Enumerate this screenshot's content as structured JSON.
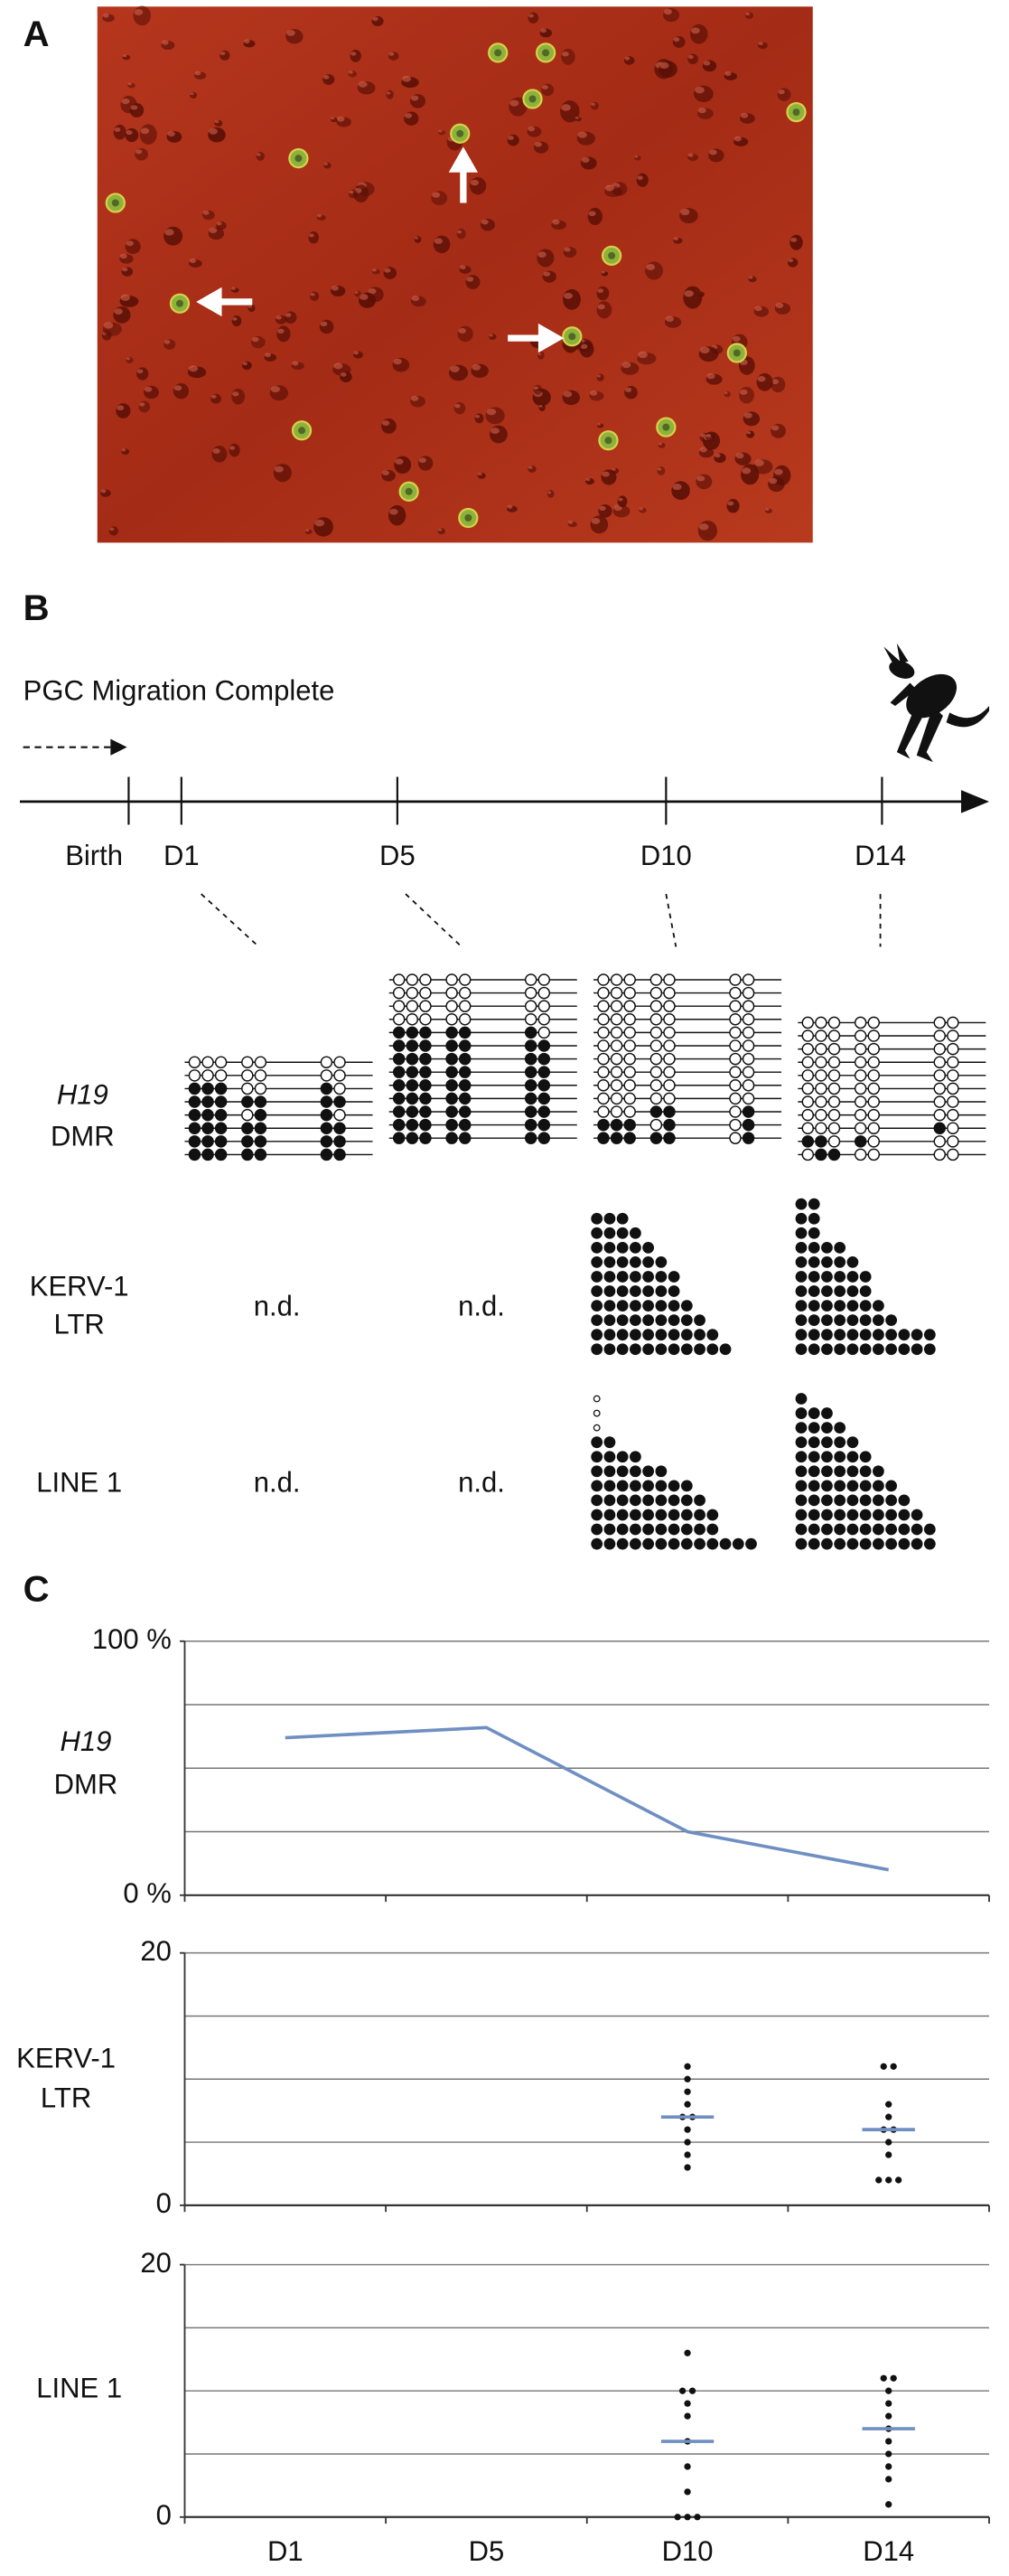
{
  "panels": [
    {
      "label": "A"
    },
    {
      "label": "B"
    },
    {
      "label": "C"
    }
  ],
  "timeline": {
    "heading": "PGC Migration Complete",
    "stages": [
      "Birth",
      "D1",
      "D5",
      "D10",
      "D14"
    ]
  },
  "not_done": "n.d.",
  "h19_clones": [
    [
      [
        0,
        0,
        0,
        0,
        0,
        0,
        0
      ],
      [
        0,
        0,
        0,
        0,
        0,
        0,
        0
      ],
      [
        1,
        1,
        1,
        0,
        0,
        1,
        0
      ],
      [
        1,
        1,
        1,
        1,
        1,
        1,
        1
      ],
      [
        1,
        1,
        1,
        0,
        1,
        1,
        0
      ],
      [
        1,
        1,
        1,
        1,
        1,
        1,
        1
      ],
      [
        1,
        1,
        1,
        1,
        1,
        1,
        1
      ],
      [
        1,
        1,
        1,
        1,
        1,
        1,
        1
      ]
    ],
    [
      [
        0,
        0,
        0,
        0,
        0,
        0,
        0
      ],
      [
        0,
        0,
        0,
        0,
        0,
        0,
        0
      ],
      [
        0,
        0,
        0,
        0,
        0,
        0,
        0
      ],
      [
        0,
        0,
        0,
        0,
        0,
        0,
        0
      ],
      [
        1,
        1,
        1,
        1,
        1,
        1,
        0
      ],
      [
        1,
        1,
        1,
        1,
        1,
        1,
        1
      ],
      [
        1,
        1,
        1,
        1,
        1,
        1,
        1
      ],
      [
        1,
        1,
        1,
        1,
        1,
        1,
        1
      ],
      [
        1,
        1,
        1,
        1,
        1,
        1,
        1
      ],
      [
        1,
        1,
        1,
        1,
        1,
        1,
        1
      ],
      [
        1,
        1,
        1,
        1,
        1,
        1,
        1
      ],
      [
        1,
        1,
        1,
        1,
        1,
        1,
        1
      ],
      [
        1,
        1,
        1,
        1,
        1,
        1,
        1
      ]
    ],
    [
      [
        0,
        0,
        0,
        0,
        0,
        0,
        0
      ],
      [
        0,
        0,
        0,
        0,
        0,
        0,
        0
      ],
      [
        0,
        0,
        0,
        0,
        0,
        0,
        0
      ],
      [
        0,
        0,
        0,
        0,
        0,
        0,
        0
      ],
      [
        0,
        0,
        0,
        0,
        0,
        0,
        0
      ],
      [
        0,
        0,
        0,
        0,
        0,
        0,
        0
      ],
      [
        0,
        0,
        0,
        0,
        0,
        0,
        0
      ],
      [
        0,
        0,
        0,
        0,
        0,
        0,
        0
      ],
      [
        0,
        0,
        0,
        0,
        0,
        0,
        0
      ],
      [
        0,
        0,
        0,
        0,
        0,
        0,
        0
      ],
      [
        0,
        0,
        0,
        1,
        1,
        0,
        1
      ],
      [
        1,
        1,
        1,
        0,
        1,
        0,
        1
      ],
      [
        1,
        1,
        1,
        1,
        1,
        0,
        1
      ]
    ],
    [
      [
        0,
        0,
        0,
        0,
        0,
        0,
        0
      ],
      [
        0,
        0,
        0,
        0,
        0,
        0,
        0
      ],
      [
        0,
        0,
        0,
        0,
        0,
        0,
        0
      ],
      [
        0,
        0,
        0,
        0,
        0,
        0,
        0
      ],
      [
        0,
        0,
        0,
        0,
        0,
        0,
        0
      ],
      [
        0,
        0,
        0,
        0,
        0,
        0,
        0
      ],
      [
        0,
        0,
        0,
        0,
        0,
        0,
        0
      ],
      [
        0,
        0,
        0,
        0,
        0,
        0,
        0
      ],
      [
        0,
        0,
        0,
        0,
        0,
        1,
        0
      ],
      [
        1,
        1,
        0,
        1,
        0,
        0,
        0
      ],
      [
        0,
        1,
        1,
        0,
        0,
        0,
        0
      ]
    ]
  ],
  "chart_data": [
    {
      "type": "line",
      "ylabel": [
        "H19",
        "DMR"
      ],
      "values": [
        62,
        66,
        25,
        10
      ],
      "color": "#6f8fc2",
      "ylim": [
        0,
        100
      ],
      "yticks": [
        {
          "value": 100,
          "label": "100 %"
        },
        {
          "value": 0,
          "label": "0 %"
        }
      ],
      "ygrid": [
        0,
        25,
        50,
        75,
        100
      ]
    },
    {
      "type": "strip",
      "ylabel": [
        "KERV-1",
        "LTR"
      ],
      "values": [
        null,
        null,
        [
          3,
          4,
          5,
          6,
          7,
          7,
          8,
          9,
          10,
          11
        ],
        [
          2,
          2,
          2,
          4,
          5,
          6,
          6,
          7,
          8,
          11,
          11
        ]
      ],
      "medians": [
        null,
        null,
        7,
        6
      ],
      "color": "#6f8fc2",
      "ylim": [
        0,
        20
      ],
      "yticks": [
        20,
        0
      ],
      "ygrid": [
        0,
        5,
        10,
        15,
        20
      ]
    },
    {
      "type": "strip",
      "ylabel": [
        "LINE 1"
      ],
      "values": [
        null,
        null,
        [
          0,
          0,
          0,
          2,
          4,
          6,
          8,
          9,
          10,
          10,
          13
        ],
        [
          1,
          3,
          4,
          5,
          6,
          7,
          8,
          9,
          10,
          11,
          11
        ]
      ],
      "medians": [
        null,
        null,
        6,
        7
      ],
      "color": "#6f8fc2",
      "ylim": [
        0,
        20
      ],
      "yticks": [
        20,
        0
      ],
      "ygrid": [
        0,
        5,
        10,
        15,
        20
      ],
      "categories": [
        "D1",
        "D5",
        "D10",
        "D14"
      ]
    }
  ]
}
